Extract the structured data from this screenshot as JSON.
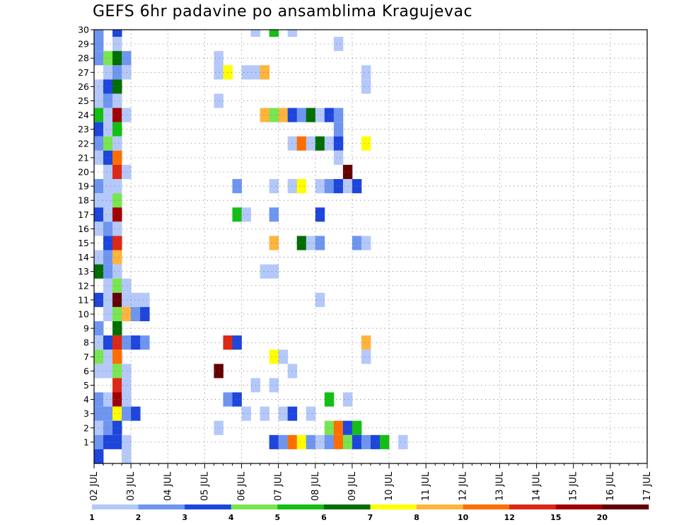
{
  "chart_data": {
    "type": "heatmap",
    "title": "GEFS 6hr padavine po ansamblima Kragujevac",
    "xlabel": "",
    "ylabel": "",
    "x_ticks": [
      "02 JUL",
      "03 JUL",
      "04 JUL",
      "05 JUL",
      "06 JUL",
      "07 JUL",
      "08 JUL",
      "09 JUL",
      "10 JUL",
      "11 JUL",
      "12 JUL",
      "13 JUL",
      "14 JUL",
      "15 JUL",
      "16 JUL",
      "17 JUL"
    ],
    "y_ticks": [
      1,
      2,
      3,
      4,
      5,
      6,
      7,
      8,
      9,
      10,
      11,
      12,
      13,
      14,
      15,
      16,
      17,
      18,
      19,
      20,
      21,
      22,
      23,
      24,
      25,
      26,
      27,
      28,
      29,
      30
    ],
    "y_range": [
      0,
      30
    ],
    "time_step_hours": 6,
    "grid": "dotted",
    "legend": {
      "position": "bottom",
      "boundary_labels": [
        "1",
        "2",
        "3",
        "4",
        "5",
        "6",
        "7",
        "8",
        "10",
        "12",
        "15",
        "20"
      ],
      "colors": [
        "#b4c8fa",
        "#6e96f0",
        "#1e46dc",
        "#78e650",
        "#14be14",
        "#006e00",
        "#ffff00",
        "#ffb43c",
        "#ff6e00",
        "#dc2814",
        "#a00000",
        "#640000"
      ]
    },
    "cells_note": "each cell: [member, time_step_index (0 = 02 JUL 00z, 6h steps), color_index into legend.colors]",
    "cells": [
      [
        30,
        0,
        1
      ],
      [
        30,
        2,
        2
      ],
      [
        30,
        17,
        0
      ],
      [
        30,
        19,
        4
      ],
      [
        30,
        21,
        0
      ],
      [
        29,
        0,
        1
      ],
      [
        29,
        2,
        0
      ],
      [
        29,
        26,
        0
      ],
      [
        28,
        0,
        1
      ],
      [
        28,
        1,
        3
      ],
      [
        28,
        2,
        5
      ],
      [
        28,
        3,
        1
      ],
      [
        28,
        13,
        0
      ],
      [
        27,
        1,
        0
      ],
      [
        27,
        2,
        1
      ],
      [
        27,
        3,
        0
      ],
      [
        27,
        13,
        0
      ],
      [
        27,
        14,
        6
      ],
      [
        27,
        16,
        0
      ],
      [
        27,
        17,
        0
      ],
      [
        27,
        18,
        7
      ],
      [
        27,
        29,
        0
      ],
      [
        26,
        0,
        0
      ],
      [
        26,
        1,
        2
      ],
      [
        26,
        2,
        5
      ],
      [
        26,
        29,
        0
      ],
      [
        25,
        0,
        0
      ],
      [
        25,
        1,
        1
      ],
      [
        25,
        2,
        0
      ],
      [
        25,
        13,
        0
      ],
      [
        24,
        0,
        4
      ],
      [
        24,
        1,
        0
      ],
      [
        24,
        2,
        10
      ],
      [
        24,
        3,
        0
      ],
      [
        24,
        18,
        7
      ],
      [
        24,
        19,
        3
      ],
      [
        24,
        20,
        7
      ],
      [
        24,
        21,
        2
      ],
      [
        24,
        22,
        1
      ],
      [
        24,
        23,
        5
      ],
      [
        24,
        24,
        0
      ],
      [
        24,
        25,
        2
      ],
      [
        24,
        26,
        1
      ],
      [
        23,
        0,
        2
      ],
      [
        23,
        1,
        0
      ],
      [
        23,
        2,
        4
      ],
      [
        23,
        26,
        1
      ],
      [
        22,
        0,
        1
      ],
      [
        22,
        1,
        3
      ],
      [
        22,
        2,
        0
      ],
      [
        22,
        21,
        0
      ],
      [
        22,
        22,
        8
      ],
      [
        22,
        23,
        0
      ],
      [
        22,
        24,
        5
      ],
      [
        22,
        25,
        0
      ],
      [
        22,
        26,
        2
      ],
      [
        22,
        29,
        6
      ],
      [
        21,
        0,
        0
      ],
      [
        21,
        1,
        2
      ],
      [
        21,
        2,
        8
      ],
      [
        21,
        26,
        0
      ],
      [
        20,
        1,
        0
      ],
      [
        20,
        2,
        9
      ],
      [
        20,
        3,
        0
      ],
      [
        20,
        27,
        11
      ],
      [
        19,
        0,
        1
      ],
      [
        19,
        1,
        0
      ],
      [
        19,
        2,
        0
      ],
      [
        19,
        15,
        1
      ],
      [
        19,
        19,
        0
      ],
      [
        19,
        21,
        0
      ],
      [
        19,
        22,
        6
      ],
      [
        19,
        24,
        0
      ],
      [
        19,
        25,
        1
      ],
      [
        19,
        26,
        2
      ],
      [
        19,
        27,
        0
      ],
      [
        19,
        28,
        2
      ],
      [
        18,
        0,
        0
      ],
      [
        18,
        1,
        0
      ],
      [
        18,
        2,
        3
      ],
      [
        17,
        0,
        2
      ],
      [
        17,
        1,
        0
      ],
      [
        17,
        2,
        10
      ],
      [
        17,
        15,
        4
      ],
      [
        17,
        16,
        0
      ],
      [
        17,
        19,
        1
      ],
      [
        17,
        24,
        2
      ],
      [
        16,
        0,
        0
      ],
      [
        16,
        1,
        1
      ],
      [
        16,
        2,
        0
      ],
      [
        15,
        1,
        2
      ],
      [
        15,
        2,
        9
      ],
      [
        15,
        19,
        7
      ],
      [
        15,
        22,
        5
      ],
      [
        15,
        23,
        0
      ],
      [
        15,
        24,
        1
      ],
      [
        15,
        28,
        1
      ],
      [
        15,
        29,
        0
      ],
      [
        14,
        0,
        0
      ],
      [
        14,
        1,
        1
      ],
      [
        14,
        2,
        7
      ],
      [
        13,
        0,
        5
      ],
      [
        13,
        1,
        1
      ],
      [
        13,
        2,
        0
      ],
      [
        13,
        18,
        0
      ],
      [
        13,
        19,
        0
      ],
      [
        12,
        1,
        0
      ],
      [
        12,
        2,
        3
      ],
      [
        12,
        3,
        0
      ],
      [
        11,
        0,
        2
      ],
      [
        11,
        1,
        0
      ],
      [
        11,
        2,
        11
      ],
      [
        11,
        3,
        0
      ],
      [
        11,
        4,
        0
      ],
      [
        11,
        5,
        0
      ],
      [
        11,
        24,
        0
      ],
      [
        10,
        1,
        0
      ],
      [
        10,
        2,
        3
      ],
      [
        10,
        3,
        7
      ],
      [
        10,
        4,
        1
      ],
      [
        10,
        5,
        2
      ],
      [
        9,
        0,
        1
      ],
      [
        9,
        2,
        5
      ],
      [
        8,
        0,
        0
      ],
      [
        8,
        1,
        2
      ],
      [
        8,
        2,
        9
      ],
      [
        8,
        3,
        1
      ],
      [
        8,
        4,
        2
      ],
      [
        8,
        5,
        1
      ],
      [
        8,
        14,
        9
      ],
      [
        8,
        15,
        2
      ],
      [
        8,
        29,
        7
      ],
      [
        7,
        0,
        3
      ],
      [
        7,
        1,
        0
      ],
      [
        7,
        2,
        8
      ],
      [
        7,
        19,
        6
      ],
      [
        7,
        20,
        0
      ],
      [
        7,
        29,
        0
      ],
      [
        6,
        0,
        0
      ],
      [
        6,
        1,
        0
      ],
      [
        6,
        2,
        3
      ],
      [
        6,
        3,
        0
      ],
      [
        6,
        13,
        11
      ],
      [
        6,
        21,
        0
      ],
      [
        5,
        2,
        9
      ],
      [
        5,
        3,
        0
      ],
      [
        5,
        17,
        0
      ],
      [
        5,
        19,
        0
      ],
      [
        4,
        0,
        1
      ],
      [
        4,
        1,
        0
      ],
      [
        4,
        2,
        10
      ],
      [
        4,
        3,
        0
      ],
      [
        4,
        14,
        1
      ],
      [
        4,
        15,
        2
      ],
      [
        4,
        25,
        4
      ],
      [
        4,
        27,
        0
      ],
      [
        3,
        0,
        1
      ],
      [
        3,
        1,
        1
      ],
      [
        3,
        2,
        6
      ],
      [
        3,
        3,
        1
      ],
      [
        3,
        4,
        2
      ],
      [
        3,
        16,
        0
      ],
      [
        3,
        18,
        0
      ],
      [
        3,
        20,
        0
      ],
      [
        3,
        21,
        2
      ],
      [
        3,
        23,
        0
      ],
      [
        2,
        0,
        0
      ],
      [
        2,
        1,
        1
      ],
      [
        2,
        2,
        2
      ],
      [
        2,
        13,
        0
      ],
      [
        2,
        25,
        3
      ],
      [
        2,
        26,
        8
      ],
      [
        2,
        27,
        2
      ],
      [
        2,
        28,
        4
      ],
      [
        1,
        0,
        1
      ],
      [
        1,
        1,
        2
      ],
      [
        1,
        2,
        2
      ],
      [
        1,
        3,
        0
      ],
      [
        1,
        19,
        2
      ],
      [
        1,
        20,
        1
      ],
      [
        1,
        21,
        8
      ],
      [
        1,
        22,
        6
      ],
      [
        1,
        23,
        1
      ],
      [
        1,
        24,
        0
      ],
      [
        1,
        25,
        1
      ],
      [
        1,
        26,
        8
      ],
      [
        1,
        27,
        3
      ],
      [
        1,
        28,
        2
      ],
      [
        1,
        29,
        1
      ],
      [
        1,
        30,
        2
      ],
      [
        1,
        31,
        4
      ],
      [
        1,
        33,
        0
      ],
      [
        0,
        0,
        2
      ],
      [
        0,
        3,
        0
      ]
    ]
  }
}
